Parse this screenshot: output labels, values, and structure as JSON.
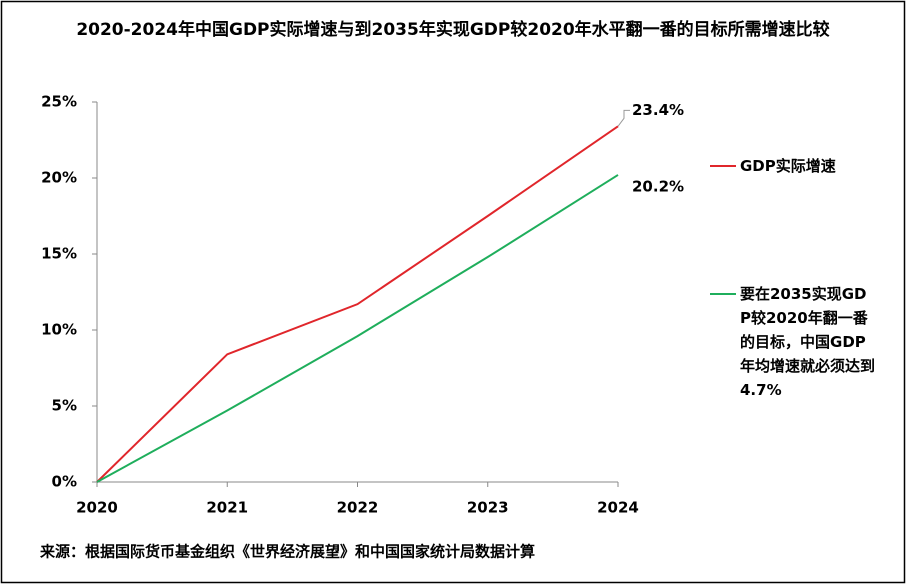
{
  "chart_data": {
    "type": "line",
    "title": "2020-2024年中国GDP实际增速与到2035年实现GDP较2020年水平翻一番的目标所需增速比较",
    "categories": [
      "2020",
      "2021",
      "2022",
      "2023",
      "2024"
    ],
    "series": [
      {
        "name": "GDP实际增速",
        "color": "#e0262b",
        "values": [
          0,
          8.4,
          11.7,
          17.5,
          23.4
        ],
        "value_labels": [
          null,
          null,
          null,
          null,
          "23.4%"
        ]
      },
      {
        "name": "要在2035实现GDP较2020年翻一番的目标，中国GDP年均增速就必须达到4.7%",
        "color": "#1fae5c",
        "values": [
          0,
          4.7,
          9.6,
          14.8,
          20.2
        ],
        "value_labels": [
          null,
          null,
          null,
          null,
          "20.2%"
        ]
      }
    ],
    "ylim": [
      0,
      25
    ],
    "yticks": [
      {
        "value": 0,
        "label": "0%"
      },
      {
        "value": 5,
        "label": "5%"
      },
      {
        "value": 10,
        "label": "10%"
      },
      {
        "value": 15,
        "label": "15%"
      },
      {
        "value": 20,
        "label": "20%"
      },
      {
        "value": 25,
        "label": "25%"
      }
    ],
    "legend": "right",
    "note": "来源：根据国际货币基金组织《世界经济展望》和中国国家统计局数据计算"
  }
}
